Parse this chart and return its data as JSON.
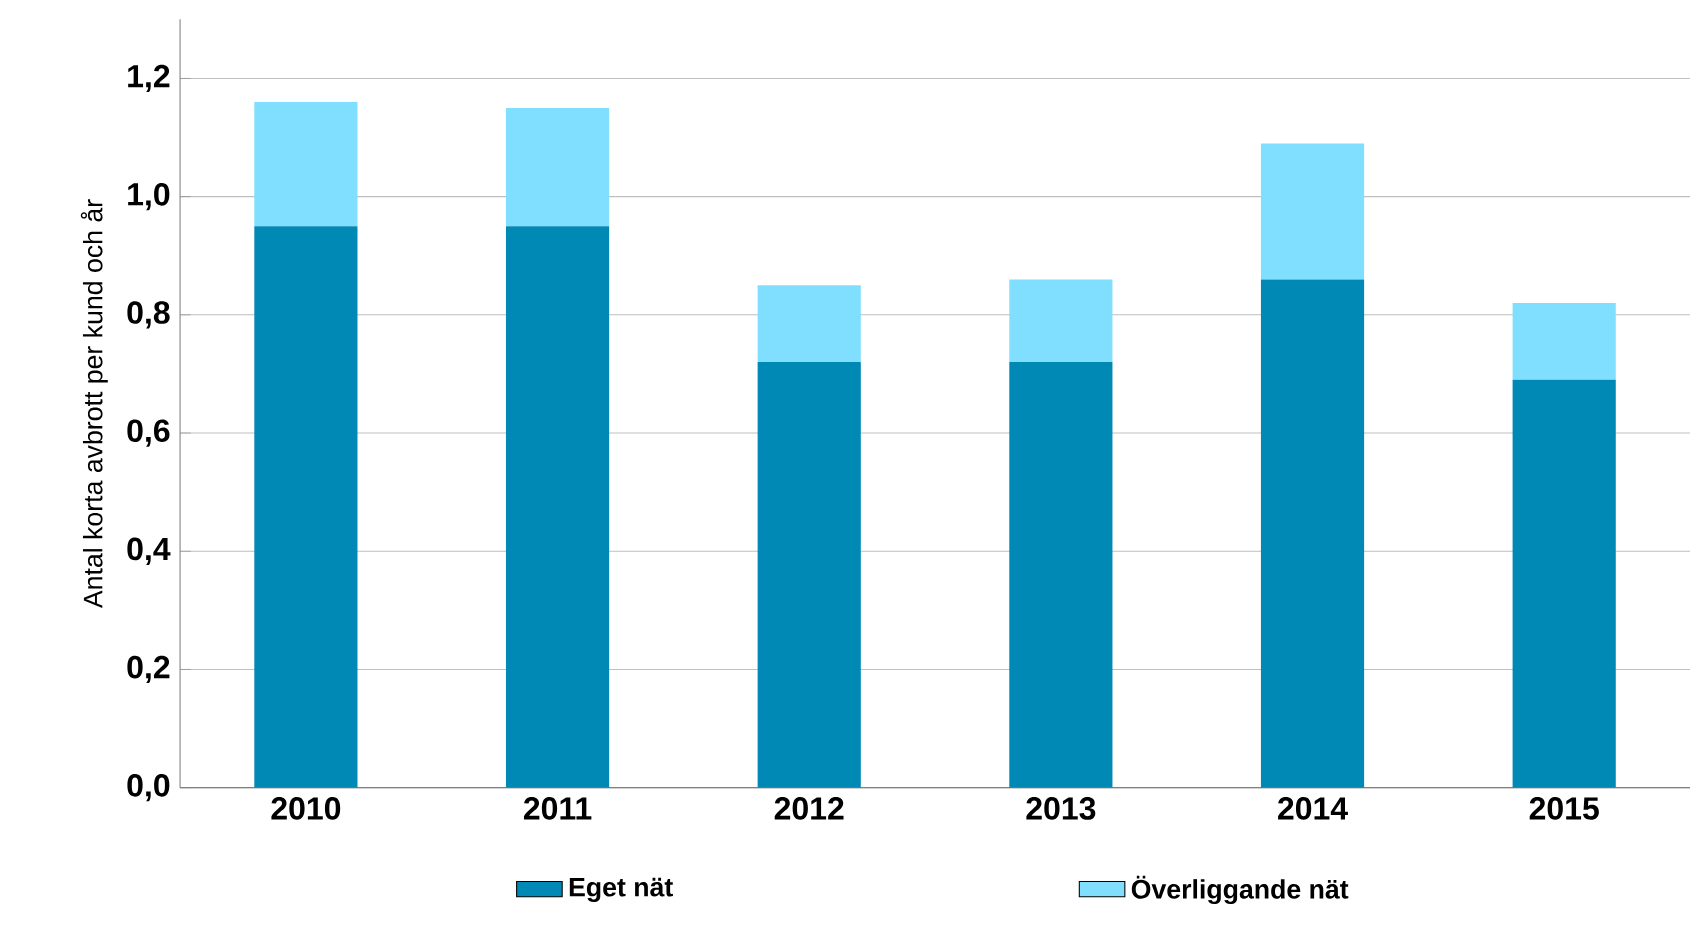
{
  "chart_data": {
    "type": "bar",
    "stacked": true,
    "ylabel": "Antal korta avbrott  per kund och år",
    "categories": [
      "2010",
      "2011",
      "2012",
      "2013",
      "2014",
      "2015"
    ],
    "series": [
      {
        "name": "Eget nät",
        "color": "#0089b5",
        "values": [
          0.95,
          0.95,
          0.72,
          0.72,
          0.86,
          0.69
        ]
      },
      {
        "name": "Överliggande nät",
        "color": "#80dfff",
        "values": [
          0.21,
          0.2,
          0.13,
          0.14,
          0.23,
          0.13
        ]
      }
    ],
    "ylim": [
      0,
      1.3
    ],
    "yticks": [
      {
        "value": 0,
        "label": "0,0"
      },
      {
        "value": 0.2,
        "label": "0,2"
      },
      {
        "value": 0.4,
        "label": "0,4"
      },
      {
        "value": 0.6,
        "label": "0,6"
      },
      {
        "value": 0.8,
        "label": "0,8"
      },
      {
        "value": 1.0,
        "label": "1,0"
      },
      {
        "value": 1.2,
        "label": "1,2"
      }
    ],
    "grid": "y",
    "legend": "bottom"
  }
}
